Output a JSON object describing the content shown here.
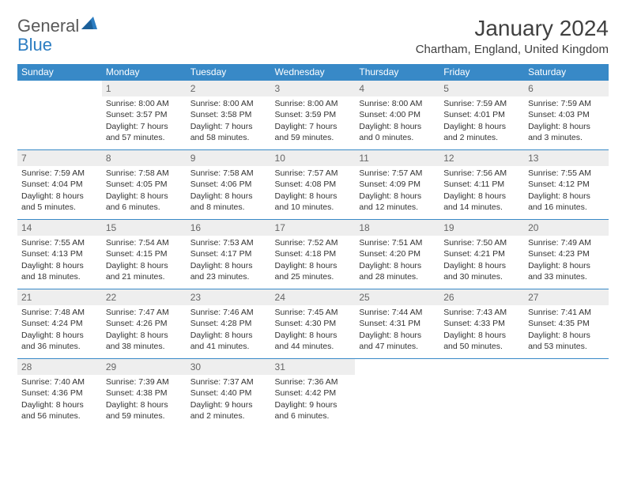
{
  "logo": {
    "general": "General",
    "blue": "Blue"
  },
  "header": {
    "title": "January 2024",
    "location": "Chartham, England, United Kingdom"
  },
  "colors": {
    "header_bg": "#3889c7",
    "header_text": "#ffffff",
    "daynum_bg": "#eeeeee",
    "daynum_text": "#666666",
    "border": "#3889c7",
    "logo_gray": "#595959",
    "logo_blue": "#2c7dc2",
    "page_bg": "#ffffff",
    "title_color": "#404040"
  },
  "weekdays": [
    "Sunday",
    "Monday",
    "Tuesday",
    "Wednesday",
    "Thursday",
    "Friday",
    "Saturday"
  ],
  "weeks": [
    [
      null,
      {
        "n": "1",
        "sr": "Sunrise: 8:00 AM",
        "ss": "Sunset: 3:57 PM",
        "d1": "Daylight: 7 hours",
        "d2": "and 57 minutes."
      },
      {
        "n": "2",
        "sr": "Sunrise: 8:00 AM",
        "ss": "Sunset: 3:58 PM",
        "d1": "Daylight: 7 hours",
        "d2": "and 58 minutes."
      },
      {
        "n": "3",
        "sr": "Sunrise: 8:00 AM",
        "ss": "Sunset: 3:59 PM",
        "d1": "Daylight: 7 hours",
        "d2": "and 59 minutes."
      },
      {
        "n": "4",
        "sr": "Sunrise: 8:00 AM",
        "ss": "Sunset: 4:00 PM",
        "d1": "Daylight: 8 hours",
        "d2": "and 0 minutes."
      },
      {
        "n": "5",
        "sr": "Sunrise: 7:59 AM",
        "ss": "Sunset: 4:01 PM",
        "d1": "Daylight: 8 hours",
        "d2": "and 2 minutes."
      },
      {
        "n": "6",
        "sr": "Sunrise: 7:59 AM",
        "ss": "Sunset: 4:03 PM",
        "d1": "Daylight: 8 hours",
        "d2": "and 3 minutes."
      }
    ],
    [
      {
        "n": "7",
        "sr": "Sunrise: 7:59 AM",
        "ss": "Sunset: 4:04 PM",
        "d1": "Daylight: 8 hours",
        "d2": "and 5 minutes."
      },
      {
        "n": "8",
        "sr": "Sunrise: 7:58 AM",
        "ss": "Sunset: 4:05 PM",
        "d1": "Daylight: 8 hours",
        "d2": "and 6 minutes."
      },
      {
        "n": "9",
        "sr": "Sunrise: 7:58 AM",
        "ss": "Sunset: 4:06 PM",
        "d1": "Daylight: 8 hours",
        "d2": "and 8 minutes."
      },
      {
        "n": "10",
        "sr": "Sunrise: 7:57 AM",
        "ss": "Sunset: 4:08 PM",
        "d1": "Daylight: 8 hours",
        "d2": "and 10 minutes."
      },
      {
        "n": "11",
        "sr": "Sunrise: 7:57 AM",
        "ss": "Sunset: 4:09 PM",
        "d1": "Daylight: 8 hours",
        "d2": "and 12 minutes."
      },
      {
        "n": "12",
        "sr": "Sunrise: 7:56 AM",
        "ss": "Sunset: 4:11 PM",
        "d1": "Daylight: 8 hours",
        "d2": "and 14 minutes."
      },
      {
        "n": "13",
        "sr": "Sunrise: 7:55 AM",
        "ss": "Sunset: 4:12 PM",
        "d1": "Daylight: 8 hours",
        "d2": "and 16 minutes."
      }
    ],
    [
      {
        "n": "14",
        "sr": "Sunrise: 7:55 AM",
        "ss": "Sunset: 4:13 PM",
        "d1": "Daylight: 8 hours",
        "d2": "and 18 minutes."
      },
      {
        "n": "15",
        "sr": "Sunrise: 7:54 AM",
        "ss": "Sunset: 4:15 PM",
        "d1": "Daylight: 8 hours",
        "d2": "and 21 minutes."
      },
      {
        "n": "16",
        "sr": "Sunrise: 7:53 AM",
        "ss": "Sunset: 4:17 PM",
        "d1": "Daylight: 8 hours",
        "d2": "and 23 minutes."
      },
      {
        "n": "17",
        "sr": "Sunrise: 7:52 AM",
        "ss": "Sunset: 4:18 PM",
        "d1": "Daylight: 8 hours",
        "d2": "and 25 minutes."
      },
      {
        "n": "18",
        "sr": "Sunrise: 7:51 AM",
        "ss": "Sunset: 4:20 PM",
        "d1": "Daylight: 8 hours",
        "d2": "and 28 minutes."
      },
      {
        "n": "19",
        "sr": "Sunrise: 7:50 AM",
        "ss": "Sunset: 4:21 PM",
        "d1": "Daylight: 8 hours",
        "d2": "and 30 minutes."
      },
      {
        "n": "20",
        "sr": "Sunrise: 7:49 AM",
        "ss": "Sunset: 4:23 PM",
        "d1": "Daylight: 8 hours",
        "d2": "and 33 minutes."
      }
    ],
    [
      {
        "n": "21",
        "sr": "Sunrise: 7:48 AM",
        "ss": "Sunset: 4:24 PM",
        "d1": "Daylight: 8 hours",
        "d2": "and 36 minutes."
      },
      {
        "n": "22",
        "sr": "Sunrise: 7:47 AM",
        "ss": "Sunset: 4:26 PM",
        "d1": "Daylight: 8 hours",
        "d2": "and 38 minutes."
      },
      {
        "n": "23",
        "sr": "Sunrise: 7:46 AM",
        "ss": "Sunset: 4:28 PM",
        "d1": "Daylight: 8 hours",
        "d2": "and 41 minutes."
      },
      {
        "n": "24",
        "sr": "Sunrise: 7:45 AM",
        "ss": "Sunset: 4:30 PM",
        "d1": "Daylight: 8 hours",
        "d2": "and 44 minutes."
      },
      {
        "n": "25",
        "sr": "Sunrise: 7:44 AM",
        "ss": "Sunset: 4:31 PM",
        "d1": "Daylight: 8 hours",
        "d2": "and 47 minutes."
      },
      {
        "n": "26",
        "sr": "Sunrise: 7:43 AM",
        "ss": "Sunset: 4:33 PM",
        "d1": "Daylight: 8 hours",
        "d2": "and 50 minutes."
      },
      {
        "n": "27",
        "sr": "Sunrise: 7:41 AM",
        "ss": "Sunset: 4:35 PM",
        "d1": "Daylight: 8 hours",
        "d2": "and 53 minutes."
      }
    ],
    [
      {
        "n": "28",
        "sr": "Sunrise: 7:40 AM",
        "ss": "Sunset: 4:36 PM",
        "d1": "Daylight: 8 hours",
        "d2": "and 56 minutes."
      },
      {
        "n": "29",
        "sr": "Sunrise: 7:39 AM",
        "ss": "Sunset: 4:38 PM",
        "d1": "Daylight: 8 hours",
        "d2": "and 59 minutes."
      },
      {
        "n": "30",
        "sr": "Sunrise: 7:37 AM",
        "ss": "Sunset: 4:40 PM",
        "d1": "Daylight: 9 hours",
        "d2": "and 2 minutes."
      },
      {
        "n": "31",
        "sr": "Sunrise: 7:36 AM",
        "ss": "Sunset: 4:42 PM",
        "d1": "Daylight: 9 hours",
        "d2": "and 6 minutes."
      },
      null,
      null,
      null
    ]
  ]
}
